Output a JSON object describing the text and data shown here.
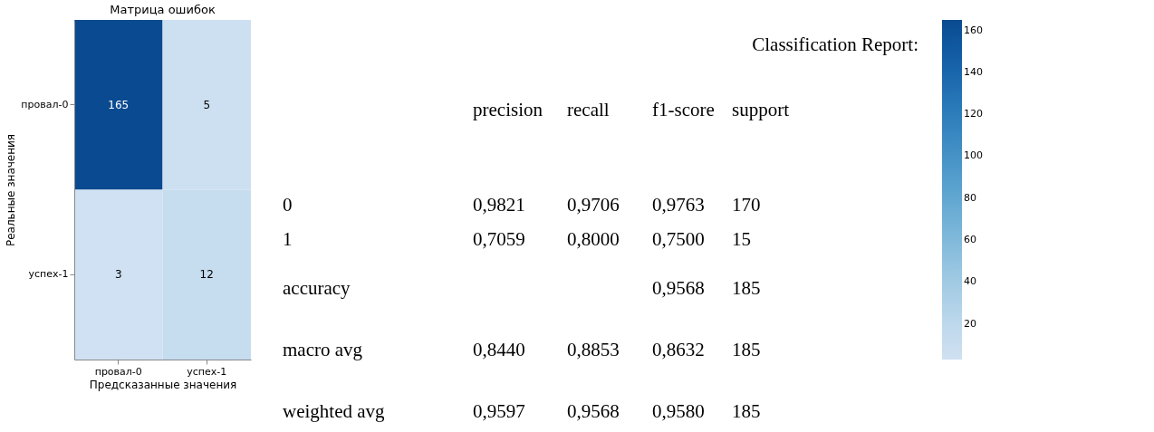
{
  "chart_data": [
    {
      "type": "heatmap",
      "title": "Матрица ошибок",
      "xlabel": "Предсказанные значения",
      "ylabel": "Реальные значения",
      "categories": [
        "провал-0",
        "успех-1"
      ],
      "y_categories": [
        "провал-0",
        "успех-1"
      ],
      "cells": [
        [
          165,
          5
        ],
        [
          3,
          12
        ]
      ],
      "data_labels": true,
      "clim": [
        3,
        165
      ],
      "cticks": [
        20,
        40,
        60,
        80,
        100,
        120,
        140,
        160
      ]
    },
    {
      "type": "other",
      "title": "Classification Report:",
      "annotations": [
        "precision",
        "recall",
        "f1-score",
        "support",
        "0",
        "0,9821",
        "0,9706",
        "0,9763",
        "170",
        "1",
        "0,7059",
        "0,8000",
        "0,7500",
        "15",
        "accuracy",
        "0,9568",
        "185",
        "macro avg",
        "0,8440",
        "0,8853",
        "0,8632",
        "185",
        "weighted avg",
        "0,9597",
        "0,9568",
        "0,9580",
        "185"
      ]
    }
  ]
}
